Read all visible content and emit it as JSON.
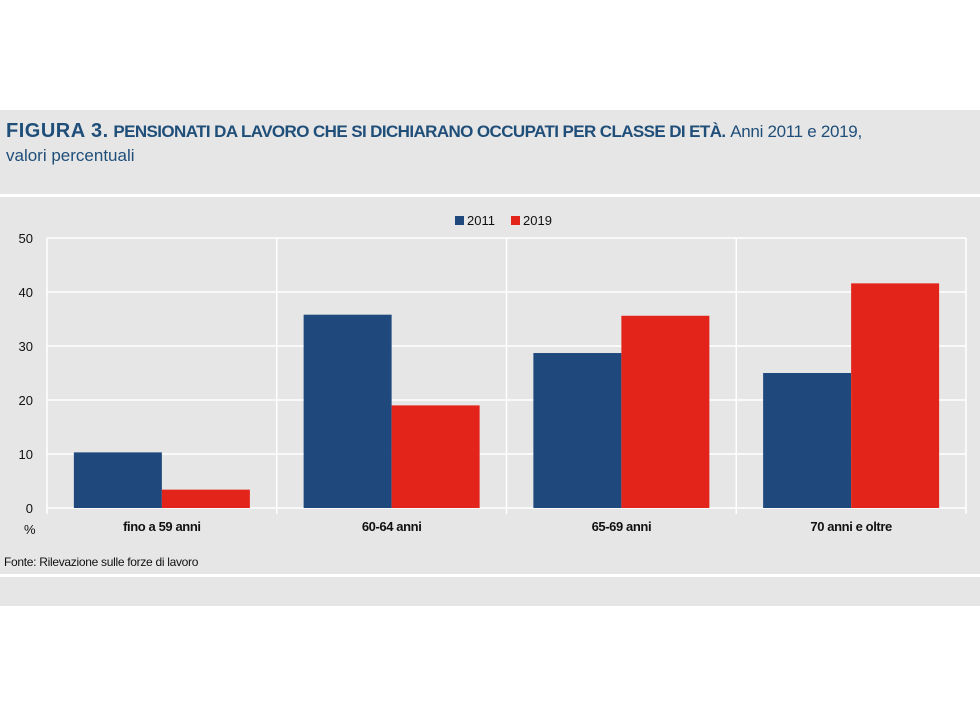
{
  "header": {
    "figure_label": "FIGURA 3.",
    "heading": "PENSIONATI DA LAVORO CHE SI DICHIARANO OCCUPATI PER CLASSE DI ETÀ.",
    "subheading_line1": "Anni 2011 e 2019,",
    "subheading_line2": "valori percentuali"
  },
  "source": "Fonte: Rilevazione sulle forze di lavoro",
  "colors": {
    "s2011": "#1f497d",
    "s2019": "#e3241b",
    "panel": "#e6e6e6",
    "grid": "#ffffff"
  },
  "chart_data": {
    "type": "bar",
    "categories": [
      "fino a 59 anni",
      "60-64 anni",
      "65-69 anni",
      "70 anni e oltre"
    ],
    "series": [
      {
        "name": "2011",
        "values": [
          10.3,
          35.8,
          28.7,
          25.0
        ]
      },
      {
        "name": "2019",
        "values": [
          3.4,
          19.0,
          35.6,
          41.6
        ]
      }
    ],
    "ylabel": "%",
    "ylim": [
      0,
      50
    ],
    "yticks": [
      0,
      10,
      20,
      30,
      40,
      50
    ],
    "grid": true,
    "legend_position": "top-center"
  }
}
